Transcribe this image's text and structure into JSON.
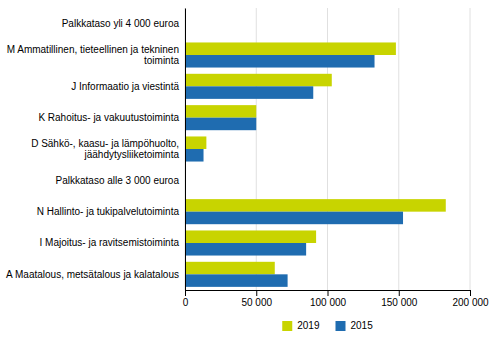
{
  "chart_data": {
    "type": "bar",
    "orientation": "horizontal",
    "categories": [
      "Palkkataso yli 4 000 euroa",
      "M Ammatillinen, tieteellinen ja tekninen\ntoiminta",
      "J Informaatio ja viestintä",
      "K Rahoitus- ja vakuutustoiminta",
      "D Sähkö-, kaasu- ja lämpöhuolto,\njäähdytysliike­toiminta",
      "Palkkataso alle 3 000 euroa",
      "N Hallinto- ja tukipalvelutoiminta",
      "I Majoitus- ja ravitsemistoiminta",
      "A Maatalous, metsätalous ja kalatalous"
    ],
    "series": [
      {
        "name": "2019",
        "color": "#c8d400",
        "values": [
          null,
          148000,
          103000,
          50000,
          15000,
          null,
          183000,
          92000,
          63000
        ]
      },
      {
        "name": "2015",
        "color": "#1f6cb0",
        "values": [
          null,
          133000,
          90000,
          50000,
          13000,
          null,
          153000,
          85000,
          72000
        ]
      }
    ],
    "xlim": [
      0,
      200000
    ],
    "xticks": [
      0,
      {
        "value": 50000,
        "label": "50 000"
      },
      {
        "value": 100000,
        "label": "100 000"
      },
      {
        "value": 150000,
        "label": "150 000"
      },
      {
        "value": 200000,
        "label": "200 000"
      }
    ],
    "grid": true,
    "legend": "bottom"
  }
}
